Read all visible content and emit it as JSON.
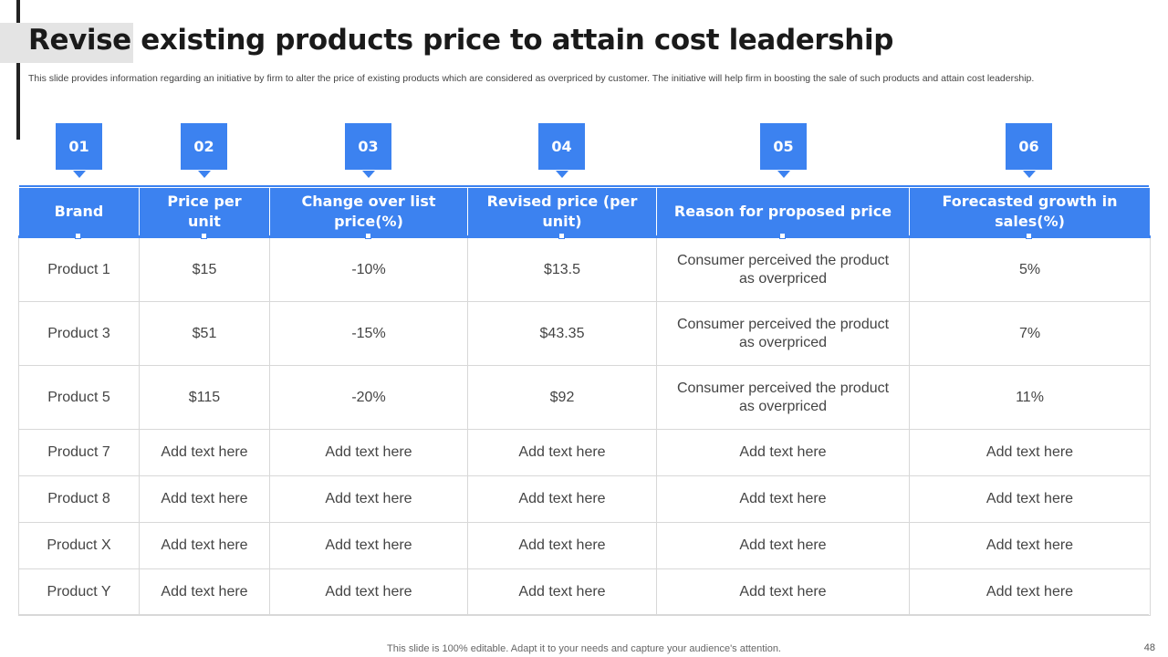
{
  "title": "Revise existing products price to attain cost leadership",
  "subtitle": "This slide provides information regarding an initiative by firm to alter the price of existing products which are considered as overpriced by customer. The initiative will help firm in boosting the sale of such products and attain cost leadership.",
  "badges": [
    "01",
    "02",
    "03",
    "04",
    "05",
    "06"
  ],
  "headers": [
    "Brand",
    "Price per unit",
    "Change over list price(%)",
    "Revised price (per unit)",
    "Reason for proposed price",
    "Forecasted growth in sales(%)"
  ],
  "rows": [
    [
      "Product 1",
      "$15",
      "-10%",
      "$13.5",
      "Consumer perceived the product as overpriced",
      "5%"
    ],
    [
      "Product 3",
      "$51",
      "-15%",
      "$43.35",
      "Consumer perceived the product as overpriced",
      "7%"
    ],
    [
      "Product 5",
      "$115",
      "-20%",
      "$92",
      "Consumer perceived the product as overpriced",
      "11%"
    ],
    [
      "Product 7",
      "Add text here",
      "Add text here",
      "Add text here",
      "Add text here",
      "Add text here"
    ],
    [
      "Product 8",
      "Add text here",
      "Add text here",
      "Add text here",
      "Add text here",
      "Add text here"
    ],
    [
      "Product X",
      "Add text here",
      "Add text here",
      "Add text here",
      "Add text here",
      "Add text here"
    ],
    [
      "Product Y",
      "Add text here",
      "Add text here",
      "Add text here",
      "Add text here",
      "Add text here"
    ]
  ],
  "footer": "This slide is 100% editable. Adapt it to your needs and capture your audience's attention.",
  "page_number": "48",
  "colors": {
    "accent": "#3c82f0",
    "title": "#1a1a1a",
    "grid": "#d8d8d8"
  }
}
